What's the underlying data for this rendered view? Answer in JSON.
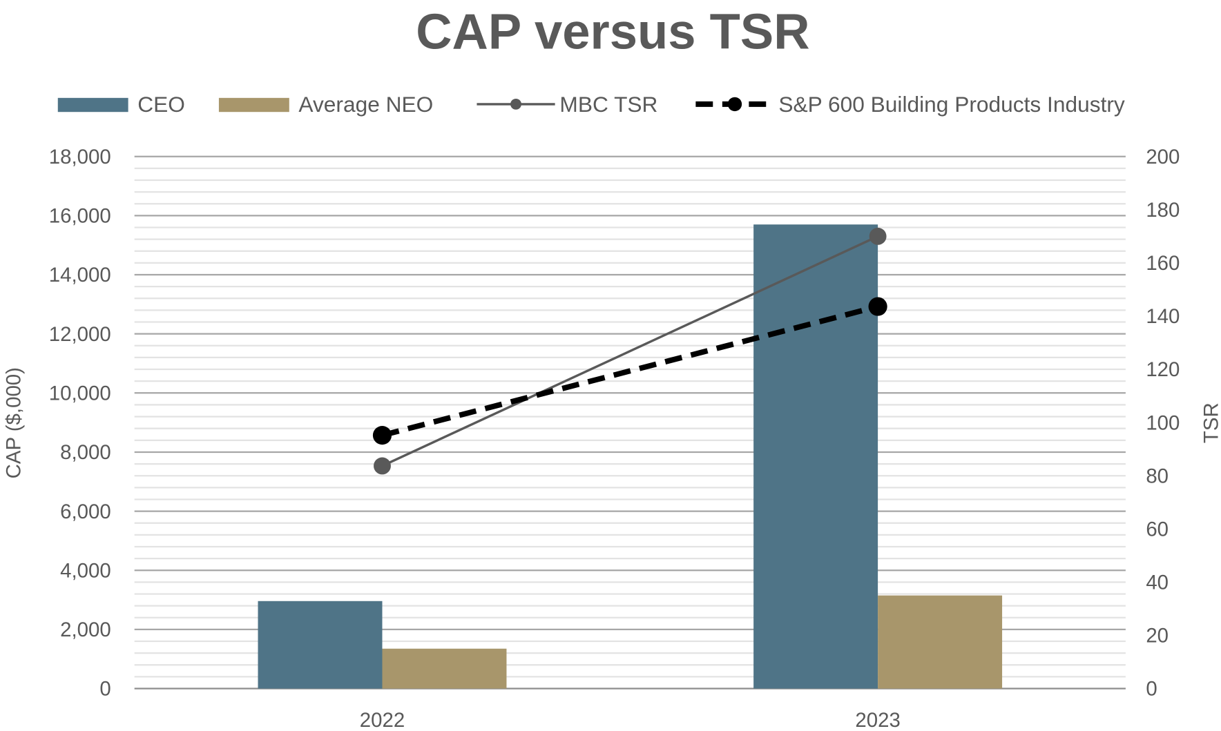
{
  "chart_data": {
    "type": "bar",
    "title": "CAP versus TSR",
    "categories": [
      "2022",
      "2023"
    ],
    "xlabel": "",
    "ylabel": "CAP ($,000)",
    "y2label": "TSR",
    "ylim": [
      0,
      18000
    ],
    "y2lim": [
      0,
      200
    ],
    "yticks": [
      "0",
      "2,000",
      "4,000",
      "6,000",
      "8,000",
      "10,000",
      "12,000",
      "14,000",
      "16,000",
      "18,000"
    ],
    "y2ticks": [
      "0",
      "20",
      "40",
      "60",
      "80",
      "100",
      "120",
      "140",
      "160",
      "180",
      "200"
    ],
    "grid": true,
    "legend_position": "top",
    "series": [
      {
        "name": "CEO",
        "kind": "bar",
        "axis": "left",
        "color": "#4F7487",
        "values": [
          2960,
          15700
        ]
      },
      {
        "name": "Average NEO",
        "kind": "bar",
        "axis": "left",
        "color": "#A8966B",
        "values": [
          1350,
          3150
        ]
      },
      {
        "name": "MBC TSR",
        "kind": "line",
        "axis": "right",
        "color": "#595959",
        "style": "solid",
        "values": [
          83.7,
          170
        ]
      },
      {
        "name": "S&P 600 Building Products Industry",
        "kind": "line",
        "axis": "right",
        "color": "#000000",
        "style": "dashed",
        "values": [
          95.2,
          143.6
        ]
      }
    ]
  }
}
